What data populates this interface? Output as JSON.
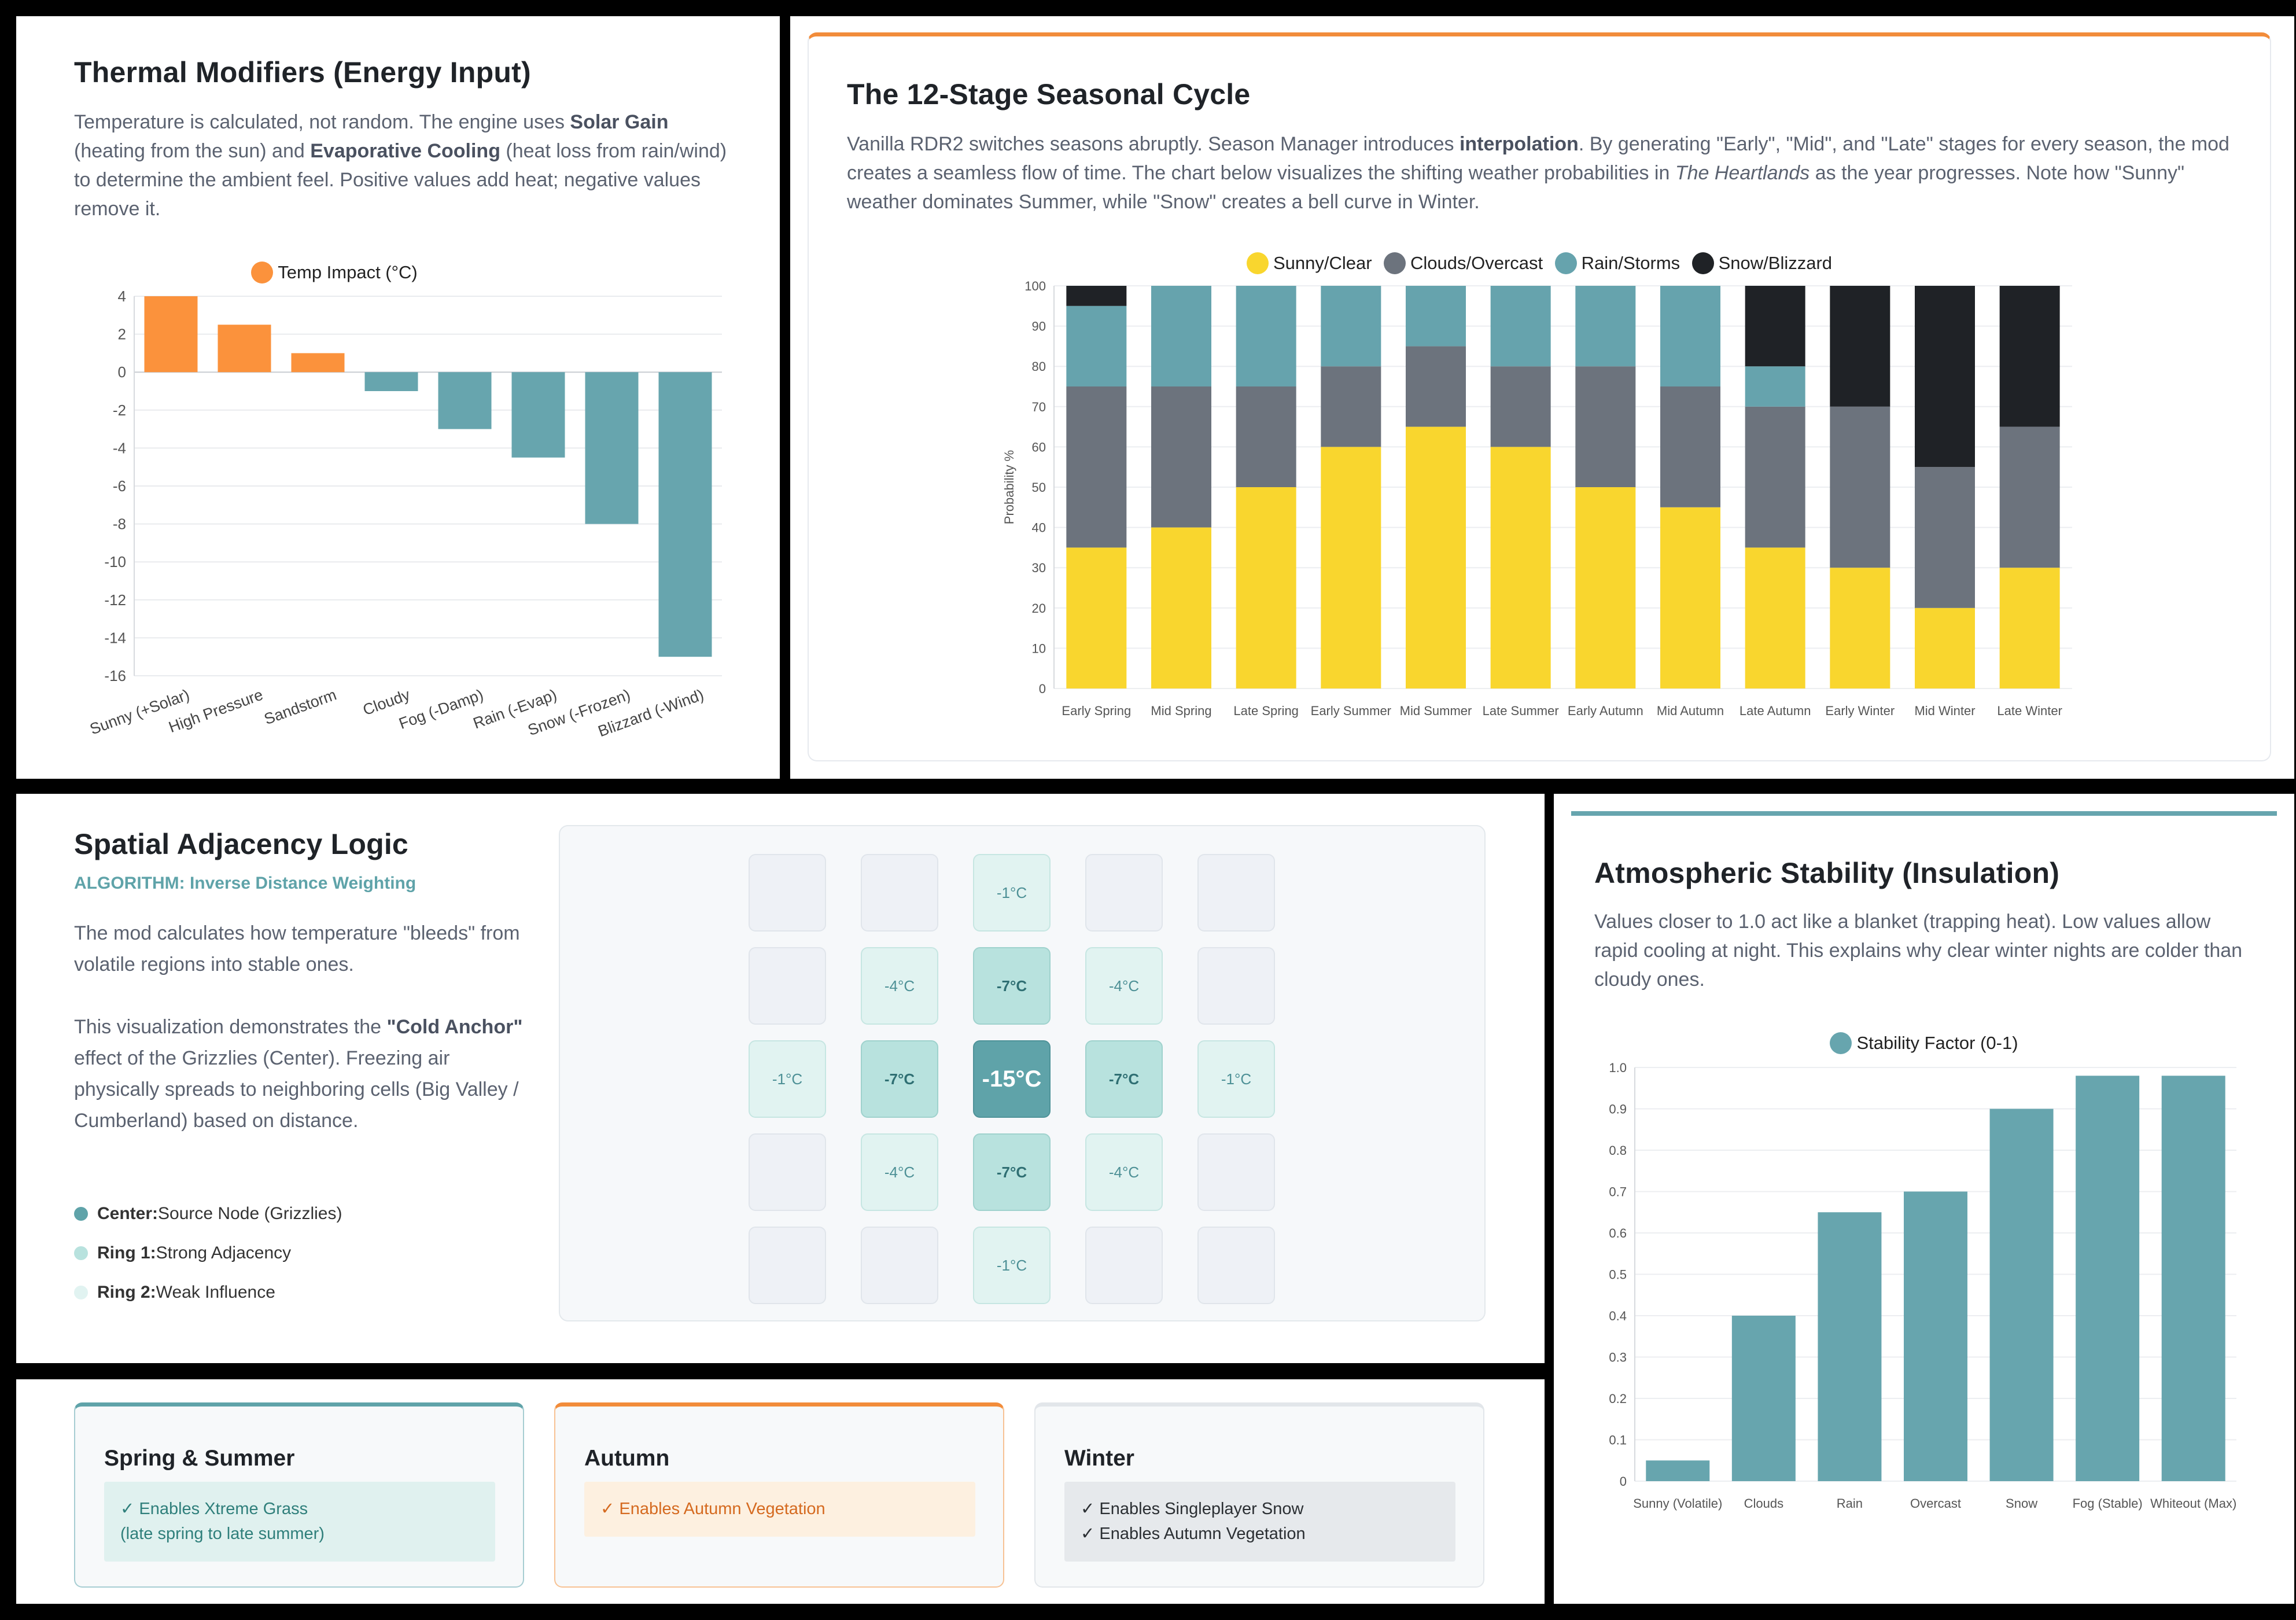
{
  "thermal": {
    "title": "Thermal Modifiers (Energy Input)",
    "desc_1": "Temperature is calculated, not random. The engine uses ",
    "desc_b1": "Solar Gain",
    "desc_2": " (heating from the sun) and ",
    "desc_b2": "Evaporative Cooling",
    "desc_3": " (heat loss from rain/wind) to determine the ambient feel. Positive values add heat; negative values remove it.",
    "chart_legend": "Temp Impact (°C)"
  },
  "seasonal": {
    "title": "The 12-Stage Seasonal Cycle",
    "desc_1": "Vanilla RDR2 switches seasons abruptly. Season Manager introduces ",
    "desc_b": "interpolation",
    "desc_2": ". By generating \"Early\", \"Mid\", and \"Late\" stages for every season, the mod creates a seamless flow of time. The chart below visualizes the shifting weather probabilities in ",
    "desc_i": "The Heartlands",
    "desc_3": " as the year progresses. Note how \"Sunny\" weather dominates Summer, while \"Snow\" creates a bell curve in Winter."
  },
  "spatial": {
    "title": "Spatial Adjacency Logic",
    "subtitle": "ALGORITHM: Inverse Distance Weighting",
    "desc_1": "The mod calculates how temperature \"bleeds\" from volatile regions into stable ones.",
    "desc_2a": "This visualization demonstrates the ",
    "desc_2b": "\"Cold Anchor\"",
    "desc_2c": " effect of the Grizzlies (Center). Freezing air physically spreads to neighboring cells (Big Valley / Cumberland) based on distance.",
    "legend": [
      {
        "label": "Center:",
        "text": "Source Node (Grizzlies)",
        "color": "#5fa3a9"
      },
      {
        "label": "Ring 1:",
        "text": "Strong Adjacency",
        "color": "#b8e2de"
      },
      {
        "label": "Ring 2:",
        "text": "Weak Influence",
        "color": "#e1f3f1"
      }
    ],
    "grid": [
      [
        "",
        "",
        "-1°C",
        "",
        ""
      ],
      [
        "",
        "-4°C",
        "-7°C",
        "-4°C",
        ""
      ],
      [
        "-1°C",
        "-7°C",
        "-15°C",
        "-7°C",
        "-1°C"
      ],
      [
        "",
        "-4°C",
        "-7°C",
        "-4°C",
        ""
      ],
      [
        "",
        "",
        "-1°C",
        "",
        ""
      ]
    ]
  },
  "stability": {
    "title": "Atmospheric Stability (Insulation)",
    "desc": "Values closer to 1.0 act like a blanket (trapping heat). Low values allow rapid cooling at night. This explains why clear winter nights are colder than cloudy ones.",
    "chart_legend": "Stability Factor (0-1)"
  },
  "seasons": [
    {
      "title": "Spring & Summer",
      "lines": [
        "✓ Enables Xtreme Grass",
        "(late spring to late summer)"
      ],
      "accent": "#5fa3a9"
    },
    {
      "title": "Autumn",
      "lines": [
        "✓ Enables Autumn Vegetation"
      ],
      "accent": "#f28c3a"
    },
    {
      "title": "Winter",
      "lines": [
        "✓ Enables Singleplayer Snow",
        "✓ Enables Autumn Vegetation"
      ],
      "accent": "#e2e6ea"
    }
  ],
  "colors": {
    "orange": "#fb923c",
    "teal": "#67a5ae",
    "sunny": "#f9d62e",
    "clouds": "#6c737d",
    "rain": "#66a3ad",
    "snow": "#1f2226"
  },
  "chart_data": [
    {
      "type": "bar",
      "title": "Thermal Modifiers (Energy Input)",
      "categories": [
        "Sunny (+Solar)",
        "High Pressure",
        "Sandstorm",
        "Cloudy",
        "Fog (-Damp)",
        "Rain (-Evap)",
        "Snow (-Frozen)",
        "Blizzard (-Wind)"
      ],
      "series": [
        {
          "name": "Temp Impact (°C)",
          "values": [
            4,
            2.5,
            1,
            -1,
            -3,
            -4.5,
            -8,
            -15
          ]
        }
      ],
      "ylim": [
        -16,
        4
      ],
      "yticks": [
        4,
        2,
        0,
        -2,
        -4,
        -6,
        -8,
        -10,
        -12,
        -14,
        -16
      ],
      "legend": "top-center"
    },
    {
      "type": "bar",
      "stacked": true,
      "title": "The 12-Stage Seasonal Cycle",
      "categories": [
        "Early Spring",
        "Mid Spring",
        "Late Spring",
        "Early Summer",
        "Mid Summer",
        "Late Summer",
        "Early Autumn",
        "Mid Autumn",
        "Late Autumn",
        "Early Winter",
        "Mid Winter",
        "Late Winter"
      ],
      "series": [
        {
          "name": "Sunny/Clear",
          "values": [
            35,
            40,
            50,
            60,
            65,
            60,
            50,
            45,
            35,
            30,
            20,
            30
          ]
        },
        {
          "name": "Clouds/Overcast",
          "values": [
            40,
            35,
            25,
            20,
            20,
            20,
            30,
            30,
            35,
            40,
            35,
            35
          ]
        },
        {
          "name": "Rain/Storms",
          "values": [
            20,
            25,
            25,
            20,
            15,
            20,
            20,
            25,
            10,
            0,
            0,
            0
          ]
        },
        {
          "name": "Snow/Blizzard",
          "values": [
            5,
            0,
            0,
            0,
            0,
            0,
            0,
            0,
            20,
            30,
            45,
            35
          ]
        }
      ],
      "ylabel": "Probability %",
      "ylim": [
        0,
        100
      ],
      "yticks": [
        100,
        90,
        80,
        70,
        60,
        50,
        40,
        30,
        20,
        10,
        0
      ],
      "legend": "top-center"
    },
    {
      "type": "bar",
      "title": "Atmospheric Stability (Insulation)",
      "categories": [
        "Sunny (Volatile)",
        "Clouds",
        "Rain",
        "Overcast",
        "Snow",
        "Fog (Stable)",
        "Whiteout (Max)"
      ],
      "series": [
        {
          "name": "Stability Factor (0-1)",
          "values": [
            0.05,
            0.4,
            0.65,
            0.7,
            0.9,
            0.98,
            0.98
          ]
        }
      ],
      "ylim": [
        0,
        1.0
      ],
      "yticks": [
        "1.0",
        "0.9",
        "0.8",
        "0.7",
        "0.6",
        "0.5",
        "0.4",
        "0.3",
        "0.2",
        "0.1",
        "0"
      ],
      "legend": "top-center"
    }
  ]
}
